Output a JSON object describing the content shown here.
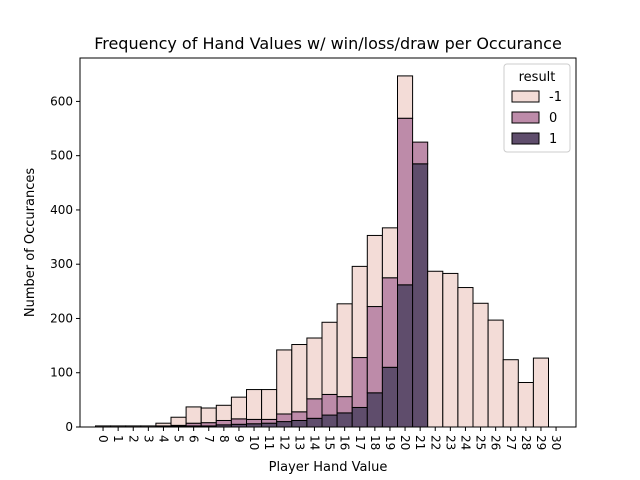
{
  "chart_data": {
    "type": "bar",
    "stacked": true,
    "title": "Frequency of Hand Values w/ win/loss/draw per Occurance",
    "xlabel": "Player Hand Value",
    "ylabel": "Number of Occurances",
    "categories": [
      "0",
      "1",
      "2",
      "3",
      "4",
      "5",
      "6",
      "7",
      "8",
      "9",
      "10",
      "11",
      "12",
      "13",
      "14",
      "15",
      "16",
      "17",
      "18",
      "19",
      "20",
      "21",
      "22",
      "23",
      "24",
      "25",
      "26",
      "27",
      "28",
      "29",
      "30"
    ],
    "ylim": [
      0,
      680
    ],
    "yticks": [
      0,
      100,
      200,
      300,
      400,
      500,
      600
    ],
    "legend": {
      "title": "result",
      "placement": "top-right"
    },
    "series": [
      {
        "name": "1",
        "color": "#5f4d6c",
        "values": [
          0,
          0,
          0,
          0,
          1,
          1,
          2,
          2,
          4,
          5,
          6,
          7,
          10,
          12,
          16,
          22,
          26,
          36,
          63,
          110,
          262,
          485,
          0,
          0,
          0,
          0,
          0,
          0,
          0,
          0,
          0
        ]
      },
      {
        "name": "0",
        "color": "#bd8ba9",
        "values": [
          0,
          0,
          0,
          0,
          1,
          2,
          5,
          6,
          8,
          10,
          8,
          7,
          14,
          16,
          36,
          38,
          30,
          92,
          159,
          165,
          307,
          40,
          0,
          0,
          0,
          0,
          0,
          0,
          0,
          0,
          0
        ]
      },
      {
        "name": "-1",
        "color": "#f3dcd7",
        "values": [
          2,
          2,
          2,
          2,
          5,
          15,
          30,
          27,
          28,
          40,
          55,
          55,
          118,
          124,
          112,
          133,
          171,
          168,
          131,
          92,
          78,
          0,
          287,
          283,
          257,
          228,
          197,
          124,
          82,
          127,
          0
        ]
      }
    ]
  }
}
